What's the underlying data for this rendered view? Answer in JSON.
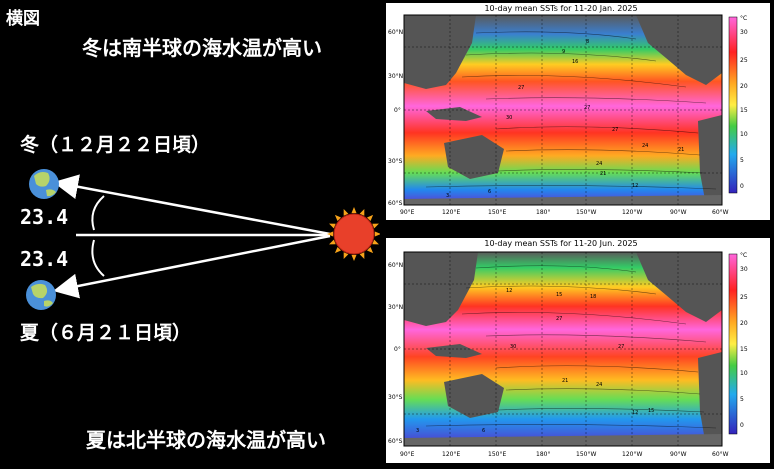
{
  "title": "横図",
  "winter_caption": "冬は南半球の海水温が高い",
  "summer_caption": "夏は北半球の海水温が高い",
  "winter_label": "冬（１２月２２日頃）",
  "summer_label": "夏（６月２１日頃）",
  "angle_top": "23.4",
  "angle_bottom": "23.4",
  "maps": [
    {
      "title": "10-day mean SSTs for 11-20 Jan. 2025",
      "lat_labels": [
        "60°N",
        "30°N",
        "0°",
        "30°S",
        "60°S"
      ],
      "lon_labels": [
        "90°E",
        "120°E",
        "150°E",
        "180°",
        "150°W",
        "120°W",
        "90°W",
        "60°W"
      ],
      "unit": "°C",
      "colorbar_ticks": [
        "30",
        "25",
        "20",
        "15",
        "10",
        "5",
        "0"
      ],
      "contour_labels": [
        "8",
        "9",
        "16",
        "27",
        "27",
        "30",
        "27",
        "24",
        "24",
        "21",
        "21",
        "12",
        "6",
        "3"
      ]
    },
    {
      "title": "10-day mean SSTs for 11-20 Jun. 2025",
      "lat_labels": [
        "60°N",
        "30°N",
        "0°",
        "30°S",
        "60°S"
      ],
      "lon_labels": [
        "90°E",
        "120°E",
        "150°E",
        "180°",
        "150°W",
        "120°W",
        "90°W",
        "60°W"
      ],
      "unit": "°C",
      "colorbar_ticks": [
        "30",
        "25",
        "20",
        "15",
        "10",
        "5",
        "0"
      ],
      "contour_labels": [
        "12",
        "15",
        "18",
        "27",
        "30",
        "27",
        "24",
        "21",
        "15",
        "12",
        "6",
        "3"
      ]
    }
  ],
  "colors": {
    "background": "#000000",
    "sun": "#e8402a",
    "sun_rays": "#f7a31a",
    "earth_ocean": "#4a90d9",
    "earth_land": "#b7d36a",
    "sst_hot": "#ff66dd",
    "sst_warm": "#ff3322",
    "sst_mid": "#ffcc22",
    "sst_cool": "#33cc66",
    "sst_cold": "#3366ff"
  }
}
